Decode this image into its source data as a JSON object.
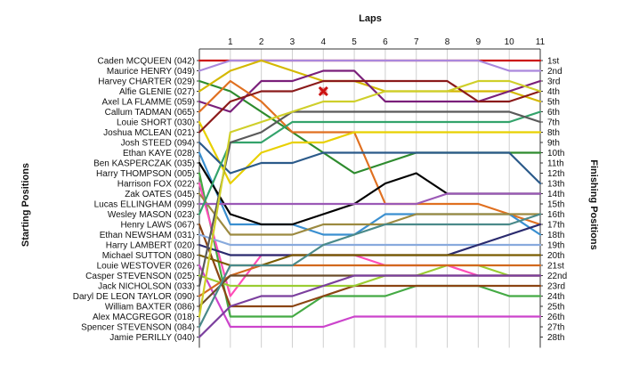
{
  "chart_data": {
    "type": "line",
    "title": "",
    "xlabel": "Laps",
    "ylabel_left": "Starting Positions",
    "ylabel_right": "Finishing Positions",
    "x": [
      0,
      1,
      2,
      3,
      4,
      5,
      6,
      7,
      8,
      9,
      10,
      11
    ],
    "x_tick_labels": [
      "1",
      "2",
      "3",
      "4",
      "5",
      "6",
      "7",
      "8",
      "9",
      "10",
      "11"
    ],
    "left_labels": [
      "Caden MCQUEEN (042)",
      "Maurice HENRY (049)",
      "Harvey CHARTER (029)",
      "Alfie GLENIE (027)",
      "Axel LA FLAMME (059)",
      "Callum TADMAN (065)",
      "Louie SHORT (030)",
      "Joshua MCLEAN (021)",
      "Josh STEED (094)",
      "Ethan KAYE (028)",
      "Ben KASPERCZAK (035)",
      "Harry THOMPSON (005)",
      "Harrison FOX (022)",
      "Zak OATES (045)",
      "Lucas ELLINGHAM (099)",
      "Wesley MASON (023)",
      "Henry LAWS (067)",
      "Ethan NEWSHAM (031)",
      "Harry LAMBERT (020)",
      "Michael SUTTON (080)",
      "Louie WESTOVER (026)",
      "Casper STEVENSON (025)",
      "Jack NICHOLSON (033)",
      "Daryl DE LEON TAYLOR (090)",
      "William BAXTER (086)",
      "Alex MACGREGOR (018)",
      "Spencer STEVENSON (084)",
      "Jamie PERILLY (040)"
    ],
    "right_labels": [
      "1st",
      "2nd",
      "3rd",
      "4th",
      "5th",
      "6th",
      "7th",
      "8th",
      "9th",
      "10th",
      "11th",
      "12th",
      "13th",
      "14th",
      "15th",
      "16th",
      "17th",
      "18th",
      "19th",
      "20th",
      "21st",
      "22nd",
      "23rd",
      "24th",
      "25th",
      "26th",
      "27th",
      "28th"
    ],
    "ylim": [
      1,
      28
    ],
    "grid": true,
    "series": [
      {
        "color": "#cc1111",
        "values": [
          1,
          1,
          1,
          1,
          1,
          1,
          1,
          1,
          1,
          1,
          1,
          1
        ]
      },
      {
        "color": "#aa88dd",
        "values": [
          2,
          1,
          1,
          1,
          1,
          1,
          1,
          1,
          1,
          1,
          2,
          2
        ]
      },
      {
        "color": "#2e8b2e",
        "values": [
          3,
          4,
          6,
          8,
          10,
          12,
          11,
          10,
          10,
          10,
          10,
          10
        ]
      },
      {
        "color": "#d4b800",
        "values": [
          4,
          2,
          1,
          2,
          3,
          3,
          4,
          4,
          4,
          4,
          4,
          5
        ]
      },
      {
        "color": "#7a1f7a",
        "values": [
          5,
          6,
          3,
          3,
          2,
          2,
          5,
          5,
          5,
          5,
          4,
          3
        ]
      },
      {
        "color": "#e07020",
        "values": [
          6,
          3,
          5,
          8,
          8,
          8,
          15,
          15,
          15,
          15,
          16,
          17
        ]
      },
      {
        "color": "#e8d000",
        "values": [
          7,
          13,
          10,
          9,
          9,
          8,
          8,
          8,
          8,
          8,
          8,
          8
        ]
      },
      {
        "color": "#8b1a1a",
        "values": [
          8,
          5,
          4,
          4,
          3,
          3,
          3,
          3,
          3,
          5,
          5,
          4
        ]
      },
      {
        "color": "#2b5a8a",
        "values": [
          9,
          12,
          11,
          11,
          10,
          10,
          10,
          10,
          10,
          10,
          10,
          13
        ]
      },
      {
        "color": "#3a8fd0",
        "values": [
          10,
          17,
          17,
          17,
          18,
          18,
          16,
          16,
          16,
          16,
          16,
          18
        ]
      },
      {
        "color": "#000000",
        "values": [
          11,
          16,
          17,
          17,
          16,
          15,
          13,
          12,
          14,
          14,
          14,
          14
        ]
      },
      {
        "color": "#44aa44",
        "values": [
          12,
          26,
          26,
          26,
          24,
          24,
          24,
          23,
          23,
          23,
          24,
          24
        ]
      },
      {
        "color": "#ff4db8",
        "values": [
          13,
          24,
          20,
          20,
          20,
          20,
          21,
          21,
          21,
          22,
          22,
          22
        ]
      },
      {
        "color": "#9c8a40",
        "values": [
          14,
          18,
          18,
          18,
          17,
          17,
          17,
          16,
          16,
          16,
          16,
          16
        ]
      },
      {
        "color": "#9b59b6",
        "values": [
          15,
          15,
          15,
          15,
          15,
          15,
          15,
          15,
          14,
          14,
          14,
          14
        ]
      },
      {
        "color": "#33a36b",
        "values": [
          16,
          9,
          9,
          7,
          7,
          7,
          7,
          7,
          7,
          7,
          7,
          6
        ]
      },
      {
        "color": "#8b4513",
        "values": [
          17,
          25,
          25,
          25,
          24,
          23,
          23,
          23,
          23,
          23,
          23,
          23
        ]
      },
      {
        "color": "#88aadd",
        "values": [
          18,
          19,
          19,
          19,
          19,
          19,
          19,
          19,
          19,
          19,
          19,
          19
        ]
      },
      {
        "color": "#2a2a6e",
        "values": [
          19,
          20,
          20,
          20,
          20,
          20,
          20,
          20,
          20,
          19,
          18,
          17
        ]
      },
      {
        "color": "#7a5c00",
        "values": [
          20,
          21,
          21,
          20,
          20,
          20,
          20,
          20,
          20,
          20,
          20,
          20
        ]
      },
      {
        "color": "#cc44cc",
        "values": [
          21,
          27,
          27,
          27,
          27,
          26,
          26,
          26,
          26,
          26,
          26,
          26
        ]
      },
      {
        "color": "#9acd32",
        "values": [
          22,
          23,
          23,
          23,
          23,
          23,
          22,
          22,
          21,
          21,
          22,
          22
        ]
      },
      {
        "color": "#5a5a5a",
        "values": [
          23,
          9,
          8,
          6,
          6,
          6,
          6,
          6,
          6,
          6,
          6,
          7
        ]
      },
      {
        "color": "#d2691e",
        "values": [
          24,
          22,
          21,
          21,
          21,
          21,
          21,
          21,
          21,
          21,
          21,
          21
        ]
      },
      {
        "color": "#6b4c2a",
        "values": [
          25,
          22,
          22,
          22,
          22,
          22,
          22,
          22,
          22,
          22,
          22,
          22
        ]
      },
      {
        "color": "#cfcf2a",
        "values": [
          26,
          8,
          7,
          6,
          5,
          5,
          4,
          4,
          4,
          3,
          3,
          4
        ]
      },
      {
        "color": "#4a8a8a",
        "values": [
          27,
          21,
          21,
          21,
          19,
          18,
          17,
          17,
          17,
          17,
          17,
          16
        ]
      },
      {
        "color": "#7b3f9e",
        "values": [
          28,
          25,
          24,
          24,
          23,
          22,
          22,
          22,
          22,
          22,
          22,
          22
        ]
      }
    ],
    "marker": {
      "lap": 4,
      "position": 4,
      "color": "#cc1111"
    }
  }
}
